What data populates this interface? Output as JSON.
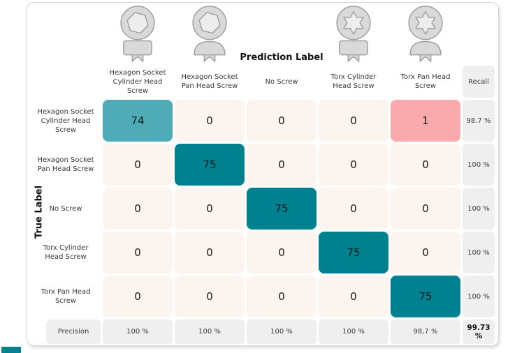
{
  "labels": {
    "prediction_axis": "Prediction Label",
    "true_axis": "True Label",
    "recall_header": "Recall",
    "precision_header": "Precision"
  },
  "chart_data": {
    "type": "heatmap",
    "x_axis_label": "Prediction Label",
    "y_axis_label": "True Label",
    "categories": [
      "Hexagon Socket Cylinder Head Screw",
      "Hexagon Socket Pan Head Screw",
      "No Screw",
      "Torx Cylinder Head Screw",
      "Torx Pan Head Screw"
    ],
    "matrix": [
      [
        74,
        0,
        0,
        0,
        1
      ],
      [
        0,
        75,
        0,
        0,
        0
      ],
      [
        0,
        0,
        75,
        0,
        0
      ],
      [
        0,
        0,
        0,
        75,
        0
      ],
      [
        0,
        0,
        0,
        0,
        75
      ]
    ],
    "recall": [
      "98.7 %",
      "100 %",
      "100 %",
      "100 %",
      "100 %"
    ],
    "precision": [
      "100 %",
      "100 %",
      "100 %",
      "100 %",
      "98,7 %"
    ],
    "overall_accuracy": "99.73 %",
    "legend_position": "none",
    "grid": false
  },
  "icons": [
    {
      "name": "hexagon-socket-cylinder-head-screw-icon",
      "drive": "hex",
      "head": "cylinder"
    },
    {
      "name": "hexagon-socket-pan-head-screw-icon",
      "drive": "hex",
      "head": "pan"
    },
    {
      "name": "torx-cylinder-head-screw-icon",
      "drive": "torx",
      "head": "cylinder"
    },
    {
      "name": "torx-pan-head-screw-icon",
      "drive": "torx",
      "head": "pan"
    }
  ],
  "colors": {
    "diagonal_strong": "#00818F",
    "diagonal_soft": "#4FACB6",
    "misclassified": "#FAA9AC",
    "empty_cell": "#FCF4EF",
    "summary_bg": "#EFEFEF",
    "icon_fill": "#D9D9D9",
    "icon_inner": "#EDEDED",
    "icon_stroke": "#A0A0A0"
  }
}
